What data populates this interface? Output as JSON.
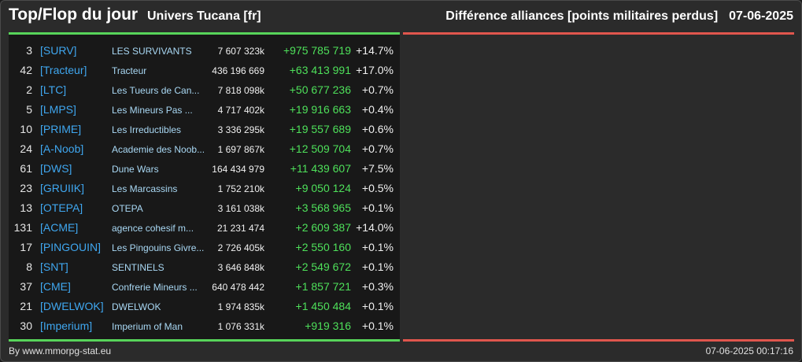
{
  "header": {
    "title": "Top/Flop du jour",
    "universe": "Univers Tucana [fr]",
    "subtitle": "Différence alliances [points militaires perdus]",
    "date": "07-06-2025"
  },
  "colors": {
    "accent_top": "#57d45a",
    "accent_flop": "#e0564d",
    "tag": "#3fa7f0",
    "diff_positive": "#4ee05a"
  },
  "rows": [
    {
      "rank": "3",
      "tag": "[SURV]",
      "name": "LES SURVIVANTS",
      "points": "7 607 323k",
      "diff": "+975 785 719",
      "pct": "+14.7%"
    },
    {
      "rank": "42",
      "tag": "[Tracteur]",
      "name": "Tracteur",
      "points": "436 196 669",
      "diff": "+63 413 991",
      "pct": "+17.0%"
    },
    {
      "rank": "2",
      "tag": "[LTC]",
      "name": "Les Tueurs de Can...",
      "points": "7 818 098k",
      "diff": "+50 677 236",
      "pct": "+0.7%"
    },
    {
      "rank": "5",
      "tag": "[LMPS]",
      "name": "Les Mineurs Pas ...",
      "points": "4 717 402k",
      "diff": "+19 916 663",
      "pct": "+0.4%"
    },
    {
      "rank": "10",
      "tag": "[PRIME]",
      "name": "Les Irreductibles",
      "points": "3 336 295k",
      "diff": "+19 557 689",
      "pct": "+0.6%"
    },
    {
      "rank": "24",
      "tag": "[A-Noob]",
      "name": "Academie des Noob...",
      "points": "1 697 867k",
      "diff": "+12 509 704",
      "pct": "+0.7%"
    },
    {
      "rank": "61",
      "tag": "[DWS]",
      "name": "Dune Wars",
      "points": "164 434 979",
      "diff": "+11 439 607",
      "pct": "+7.5%"
    },
    {
      "rank": "23",
      "tag": "[GRUIIK]",
      "name": "Les Marcassins",
      "points": "1 752 210k",
      "diff": "+9 050 124",
      "pct": "+0.5%"
    },
    {
      "rank": "13",
      "tag": "[OTEPA]",
      "name": "OTEPA",
      "points": "3 161 038k",
      "diff": "+3 568 965",
      "pct": "+0.1%"
    },
    {
      "rank": "131",
      "tag": "[ACME]",
      "name": "agence cohesif m...",
      "points": "21 231 474",
      "diff": "+2 609 387",
      "pct": "+14.0%"
    },
    {
      "rank": "17",
      "tag": "[PINGOUIN]",
      "name": "Les Pingouins Givre...",
      "points": "2 726 405k",
      "diff": "+2 550 160",
      "pct": "+0.1%"
    },
    {
      "rank": "8",
      "tag": "[SNT]",
      "name": "SENTINELS",
      "points": "3 646 848k",
      "diff": "+2 549 672",
      "pct": "+0.1%"
    },
    {
      "rank": "37",
      "tag": "[CME]",
      "name": "Confrerie Mineurs ...",
      "points": "640 478 442",
      "diff": "+1 857 721",
      "pct": "+0.3%"
    },
    {
      "rank": "21",
      "tag": "[DWELWOK]",
      "name": "DWELWOK",
      "points": "1 974 835k",
      "diff": "+1 450 484",
      "pct": "+0.1%"
    },
    {
      "rank": "30",
      "tag": "[Imperium]",
      "name": "Imperium of Man",
      "points": "1 076 331k",
      "diff": "+919 316",
      "pct": "+0.1%"
    }
  ],
  "footer": {
    "credit": "By www.mmorpg-stat.eu",
    "timestamp": "07-06-2025 00:17:16"
  }
}
